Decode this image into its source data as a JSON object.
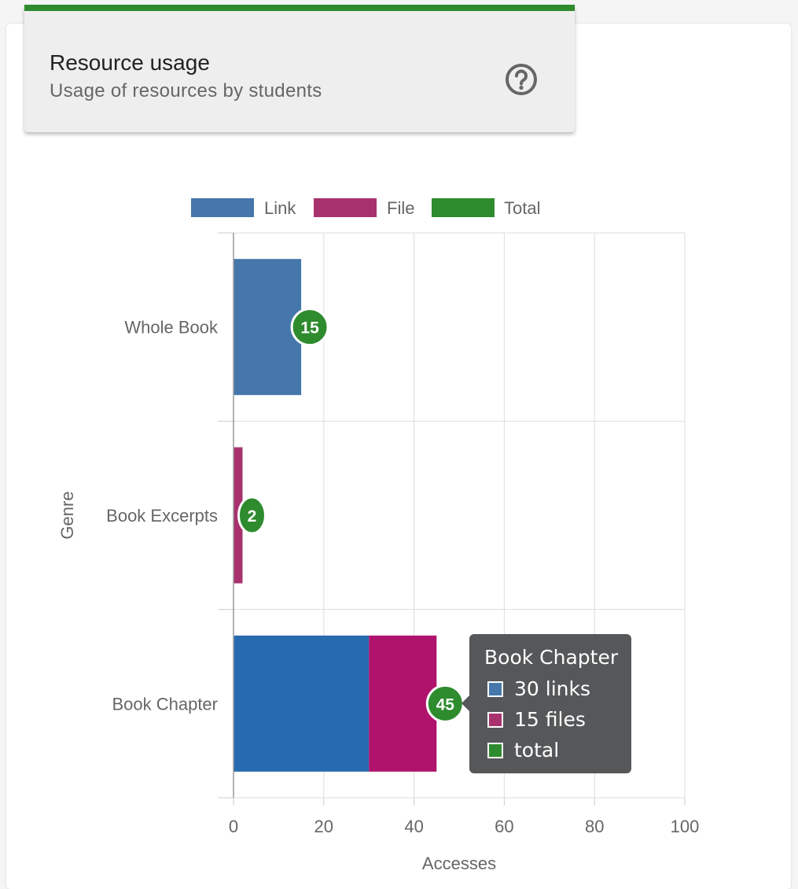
{
  "header": {
    "title": "Resource usage",
    "subtitle": "Usage of resources by students",
    "help_icon": "help-circle-icon",
    "accent_color": "#2e8b2e"
  },
  "chart_data": {
    "type": "bar",
    "orientation": "horizontal",
    "stacked": true,
    "categories": [
      "Whole Book",
      "Book Excerpts",
      "Book Chapter"
    ],
    "series": [
      {
        "name": "Link",
        "values": [
          15,
          0,
          30
        ],
        "color": "#4577ab"
      },
      {
        "name": "File",
        "values": [
          0,
          2,
          15
        ],
        "color": "#a8326e"
      },
      {
        "name": "Total",
        "values": [
          15,
          2,
          45
        ],
        "color": "#2e8b2e"
      }
    ],
    "totals": [
      15,
      2,
      45
    ],
    "highlighted_category_index": 2,
    "highlight_colors": {
      "Link": "#276ab0",
      "File": "#b0136b"
    },
    "xlabel": "Accesses",
    "ylabel": "Genre",
    "xlim": [
      0,
      100
    ],
    "xticks": [
      0,
      20,
      40,
      60,
      80,
      100
    ],
    "grid": true,
    "legend": "top"
  },
  "tooltip": {
    "title": "Book Chapter",
    "rows": [
      {
        "label": "30 links",
        "color": "#4577ab"
      },
      {
        "label": "15 files",
        "color": "#a8326e"
      },
      {
        "label": "total",
        "color": "#2e8b2e"
      }
    ]
  }
}
